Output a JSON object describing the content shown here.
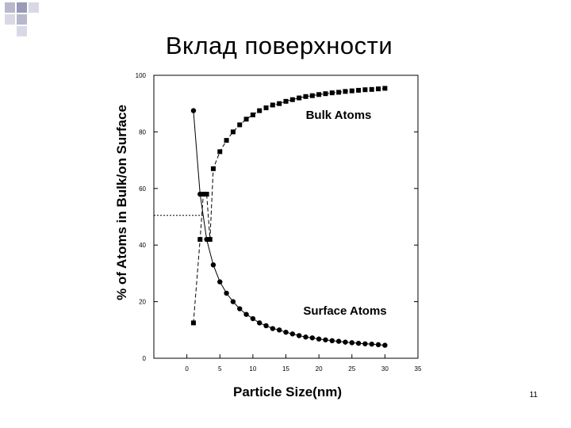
{
  "slide": {
    "title": "Вклад поверхности",
    "page_number": "11"
  },
  "chart_data": {
    "type": "scatter",
    "xlabel": "Particle Size(nm)",
    "ylabel": "% of Atoms in Bulk/on Surface",
    "xlim": [
      -5,
      35
    ],
    "ylim": [
      0,
      100
    ],
    "xticks": [
      0,
      5,
      10,
      15,
      20,
      25,
      30,
      35
    ],
    "yticks": [
      0,
      20,
      40,
      60,
      80,
      100
    ],
    "grid": false,
    "series": [
      {
        "name": "Bulk Atoms",
        "marker": "square",
        "line": "dashed",
        "points": [
          [
            1,
            12.5
          ],
          [
            2,
            42
          ],
          [
            2.5,
            58
          ],
          [
            3,
            58
          ],
          [
            3.5,
            42
          ],
          [
            4,
            67
          ],
          [
            5,
            73
          ],
          [
            6,
            77
          ],
          [
            7,
            80
          ],
          [
            8,
            82.5
          ],
          [
            9,
            84.5
          ],
          [
            10,
            86
          ],
          [
            11,
            87.5
          ],
          [
            12,
            88.5
          ],
          [
            13,
            89.5
          ],
          [
            14,
            90
          ],
          [
            15,
            90.8
          ],
          [
            16,
            91.4
          ],
          [
            17,
            92
          ],
          [
            18,
            92.5
          ],
          [
            19,
            92.8
          ],
          [
            20,
            93.2
          ],
          [
            21,
            93.5
          ],
          [
            22,
            93.8
          ],
          [
            23,
            94
          ],
          [
            24,
            94.3
          ],
          [
            25,
            94.5
          ],
          [
            26,
            94.7
          ],
          [
            27,
            94.9
          ],
          [
            28,
            95
          ],
          [
            29,
            95.2
          ],
          [
            30,
            95.4
          ]
        ]
      },
      {
        "name": "Surface Atoms",
        "marker": "circle",
        "line": "solid",
        "points": [
          [
            1,
            87.5
          ],
          [
            2,
            58
          ],
          [
            3,
            42
          ],
          [
            4,
            33
          ],
          [
            5,
            27
          ],
          [
            6,
            23
          ],
          [
            7,
            20
          ],
          [
            8,
            17.5
          ],
          [
            9,
            15.5
          ],
          [
            10,
            14
          ],
          [
            11,
            12.5
          ],
          [
            12,
            11.5
          ],
          [
            13,
            10.5
          ],
          [
            14,
            10
          ],
          [
            15,
            9.2
          ],
          [
            16,
            8.6
          ],
          [
            17,
            8
          ],
          [
            18,
            7.5
          ],
          [
            19,
            7.2
          ],
          [
            20,
            6.8
          ],
          [
            21,
            6.5
          ],
          [
            22,
            6.2
          ],
          [
            23,
            6
          ],
          [
            24,
            5.7
          ],
          [
            25,
            5.5
          ],
          [
            26,
            5.3
          ],
          [
            27,
            5.1
          ],
          [
            28,
            5
          ],
          [
            29,
            4.8
          ],
          [
            30,
            4.6
          ]
        ]
      }
    ],
    "crossover_reference_y": 50.5
  }
}
